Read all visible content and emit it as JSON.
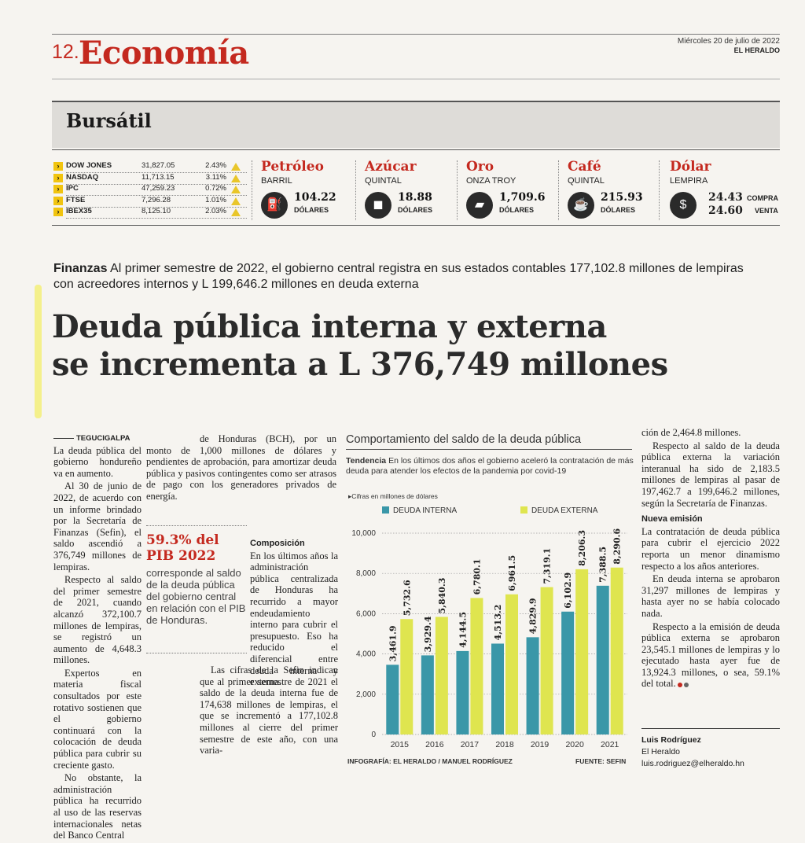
{
  "header": {
    "page_number": "12.",
    "section": "Economía",
    "date": "Miércoles 20 de julio de 2022",
    "paper": "EL HERALDO"
  },
  "bursatil": {
    "title": "Bursátil",
    "stocks": [
      {
        "name": "DOW JONES",
        "value": "31,827.05",
        "change": "2.43%"
      },
      {
        "name": "NASDAQ",
        "value": "11,713.15",
        "change": "3.11%"
      },
      {
        "name": "IPC",
        "value": "47,259.23",
        "change": "0.72%"
      },
      {
        "name": "FTSE",
        "value": "7,296.28",
        "change": "1.01%"
      },
      {
        "name": "IBEX35",
        "value": "8,125.10",
        "change": "2.03%"
      }
    ],
    "commodities": [
      {
        "name": "Petróleo",
        "unit": "BARRIL",
        "value": "104.22",
        "currency": "DÓLARES",
        "icon": "oil-barrel-icon",
        "glyph": "⛽"
      },
      {
        "name": "Azúcar",
        "unit": "QUINTAL",
        "value": "18.88",
        "currency": "DÓLARES",
        "icon": "sugar-sack-icon",
        "glyph": "◼"
      },
      {
        "name": "Oro",
        "unit": "ONZA TROY",
        "value": "1,709.6",
        "currency": "DÓLARES",
        "icon": "gold-bars-icon",
        "glyph": "▰"
      },
      {
        "name": "Café",
        "unit": "QUINTAL",
        "value": "215.93",
        "currency": "DÓLARES",
        "icon": "coffee-bean-icon",
        "glyph": "☕"
      }
    ],
    "dolar": {
      "name": "Dólar",
      "unit": "LEMPIRA",
      "buy": "24.43",
      "buy_label": "COMPRA",
      "sell": "24.60",
      "sell_label": "VENTA",
      "icon": "money-bag-icon",
      "glyph": "$"
    }
  },
  "article": {
    "lead_kicker": "Finanzas",
    "lead_text": " Al primer semestre de 2022, el gobierno central registra en sus estados contables 177,102.8 millones de lempiras con acreedores internos y L 199,646.2 millones en deuda externa",
    "headline_1": "Deuda pública interna y externa",
    "headline_2": "se incrementa a L 376,749 millones",
    "dateline": "TEGUCIGALPA",
    "col1": [
      "La deuda pública del gobierno hondureño va en aumento.",
      "Al 30 de junio de 2022, de acuerdo con un informe brindado por la Secretaría de Finanzas (Sefin), el saldo ascendió a 376,749 millones de lempiras.",
      "Respecto al saldo del primer semestre de 2021, cuando alcanzó 372,100.7 millones de lempiras, se registró un aumento de 4,648.3 millones.",
      "Expertos en materia fiscal consultados por este rotativo sostienen que el gobierno continuará con la colocación de deuda pública para cubrir su creciente gasto.",
      "No obstante, la administración pública ha recurrido al uso de las reservas internacionales netas del Banco Central"
    ],
    "col2a": "de Honduras (BCH), por un monto de 1,000 millones de dólares y pendientes de aprobación, para amortizar deuda pública y pasivos contingentes como ser atrasos de pago con los generadores privados de energía.",
    "pull_pct": "59.3% del PIB 2022",
    "pull_text": "corresponde al saldo de la deuda pública del gobierno central en relación con el PIB de Honduras.",
    "composicion_title": "Composición",
    "composicion": [
      "En los últimos años la administración pública centralizada de Honduras ha recurrido a mayor endeudamiento interno para cubrir el presupuesto. Eso ha reducido el diferencial entre deuda interna y externa.",
      "Las cifras de la Sefin indican que al primer semestre de 2021 el saldo de la deuda interna fue de 174,638 millones de lempiras, el que se incrementó a 177,102.8 millones al cierre del primer semestre de este año, con una varia-"
    ],
    "col4": [
      "ción de 2,464.8 millones.",
      "Respecto al saldo de la deuda pública externa la variación interanual ha sido de 2,183.5 millones de lempiras al pasar de 197,462.7 a 199,646.2 millones, según la Secretaría de Finanzas."
    ],
    "nueva_title": "Nueva emisión",
    "nueva": [
      "La contratación de deuda pública para cubrir el ejercicio 2022 reporta un menor dinamismo respecto a los años anteriores.",
      "En deuda interna se aprobaron 31,297 millones de lempiras y hasta ayer no se había colocado nada.",
      "Respecto a la emisión de deuda pública externa se aprobaron 23,545.1 millones de lempiras y lo ejecutado hasta ayer fue de 13,924.3 millones, o sea, 59.1% del total."
    ],
    "author": "Luis Rodríguez",
    "publication": "El Heraldo",
    "email": "luis.rodriguez@elheraldo.hn"
  },
  "chart_data": {
    "type": "bar",
    "title": "Comportamiento del saldo de la deuda pública",
    "subtitle_kicker": "Tendencia",
    "subtitle": " En los últimos dos años el gobierno aceleró la contratación de más deuda para atender los efectos de la pandemia por covid-19",
    "units": "▸Cifras en millones de dólares",
    "categories": [
      "2015",
      "2016",
      "2017",
      "2018",
      "2019",
      "2020",
      "2021"
    ],
    "series": [
      {
        "name": "DEUDA INTERNA",
        "color": "#3a97a8",
        "values": [
          3461.9,
          3929.4,
          4144.5,
          4513.2,
          4829.9,
          6102.9,
          7388.5
        ],
        "labels": [
          "3,461.9",
          "3,929.4",
          "4,144.5",
          "4,513.2",
          "4,829.9",
          "6,102.9",
          "7,388.5"
        ]
      },
      {
        "name": "DEUDA EXTERNA",
        "color": "#dfe54f",
        "values": [
          5732.6,
          5840.3,
          6780.1,
          6961.5,
          7319.1,
          8206.3,
          8290.6
        ],
        "labels": [
          "5,732.6",
          "5,840.3",
          "6,780.1",
          "6,961.5",
          "7,319.1",
          "8,206.3",
          "8,290.6"
        ]
      }
    ],
    "yticks": [
      "0",
      "2,000",
      "4,000",
      "6,000",
      "8,000",
      "10,000"
    ],
    "ylim": [
      0,
      10000
    ],
    "grid": true,
    "legend": "top",
    "credit": "INFOGRAFÍA: EL HERALDO / MANUEL RODRÍGUEZ",
    "source": "FUENTE: SEFIN"
  }
}
